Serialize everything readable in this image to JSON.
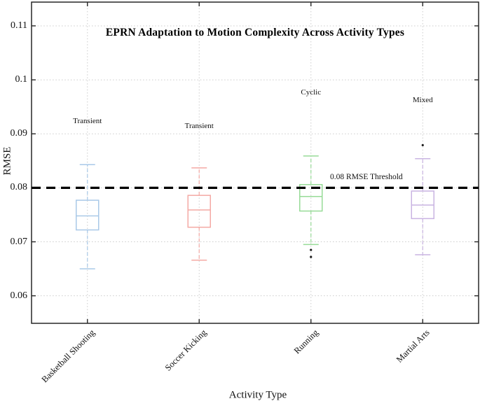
{
  "chart_data": {
    "type": "boxplot",
    "title": "EPRN Adaptation to Motion Complexity Across Activity Types",
    "xlabel": "Activity Type",
    "ylabel": "RMSE",
    "ylim": [
      0.0549,
      0.1144
    ],
    "yticks": [
      0.06,
      0.07,
      0.08,
      0.09,
      0.1,
      0.11
    ],
    "ytick_labels": [
      "0.06",
      "0.07",
      "0.08",
      "0.09",
      "0.1",
      "0.11"
    ],
    "grid": true,
    "grid_style": "dotted",
    "categories": [
      "Basketball Shooting",
      "Soccer Kicking",
      "Running",
      "Martial Arts"
    ],
    "series": [
      {
        "category": "Basketball Shooting",
        "color": "#a9c9e8",
        "whisker_low": 0.065,
        "q1": 0.0722,
        "median": 0.0748,
        "q3": 0.0777,
        "whisker_high": 0.0843,
        "outliers": [],
        "annotation": {
          "text": "Transient",
          "y": 0.0923
        }
      },
      {
        "category": "Soccer Kicking",
        "color": "#f4a9a4",
        "whisker_low": 0.0666,
        "q1": 0.0727,
        "median": 0.0759,
        "q3": 0.0786,
        "whisker_high": 0.0837,
        "outliers": [],
        "annotation": {
          "text": "Transient",
          "y": 0.0915
        }
      },
      {
        "category": "Running",
        "color": "#97db97",
        "whisker_low": 0.0695,
        "q1": 0.0757,
        "median": 0.0784,
        "q3": 0.0806,
        "whisker_high": 0.0859,
        "outliers": [
          0.0685,
          0.0672
        ],
        "annotation": {
          "text": "Cyclic",
          "y": 0.0977
        }
      },
      {
        "category": "Martial Arts",
        "color": "#c9b4e2",
        "whisker_low": 0.0676,
        "q1": 0.0743,
        "median": 0.0768,
        "q3": 0.0794,
        "whisker_high": 0.0854,
        "outliers": [
          0.0879
        ],
        "annotation": {
          "text": "Mixed",
          "y": 0.0962
        }
      }
    ],
    "threshold": {
      "value": 0.08,
      "label": "0.08 RMSE Threshold",
      "label_x_frac": 0.749,
      "label_y": 0.082,
      "color": "#000000",
      "line_style": "dashed"
    },
    "colors": {
      "grid": "#cbcbcb",
      "axis": "#262626",
      "outlier": "#1a1a1a"
    },
    "legend": null
  }
}
